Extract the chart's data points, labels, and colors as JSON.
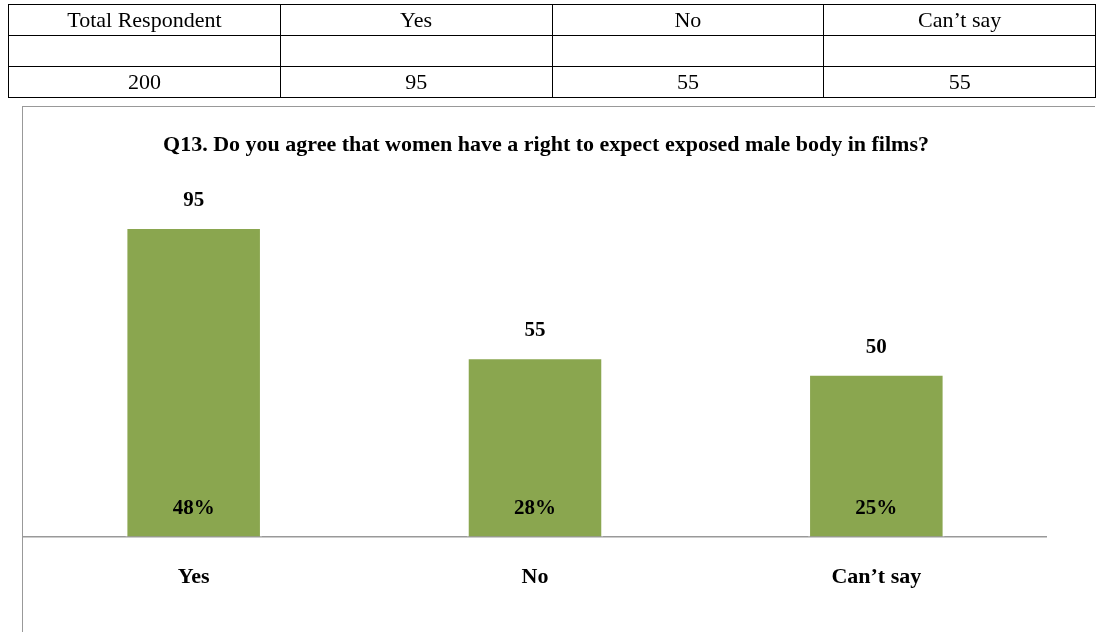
{
  "chart_data": {
    "type": "bar",
    "title": "Q13. Do you agree that women have a right to expect exposed male body in films?",
    "categories": [
      "Yes",
      "No",
      "Can’t say"
    ],
    "values": [
      95,
      55,
      50
    ],
    "color": "#8aa64f",
    "data_labels": true,
    "grid": false,
    "legend": false,
    "tick_labels": "x",
    "annotations": [
      "Total Respondent",
      "Yes",
      "No",
      "Can’t say",
      "200",
      "95",
      "55",
      "55",
      "48%",
      "28%",
      "25%"
    ]
  }
}
